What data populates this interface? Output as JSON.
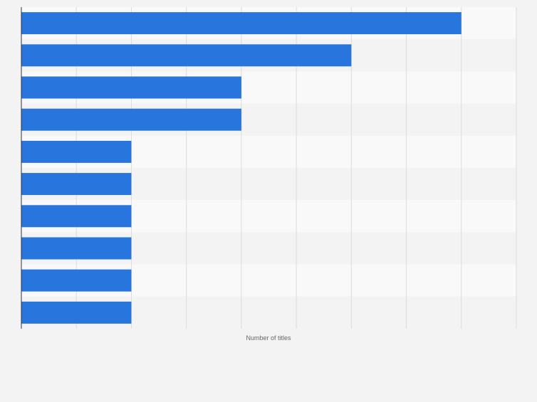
{
  "colors": {
    "bar": "#2876dd",
    "band_light": "#f9f9f9",
    "band_dark": "#f3f3f3",
    "grid": "#dcdcdc",
    "axis": "#333333",
    "label": "#666666",
    "page_bg": "#f3f3f3"
  },
  "chart_data": {
    "type": "bar",
    "orientation": "horizontal",
    "categories": [
      "",
      "",
      "",
      "",
      "",
      "",
      "",
      "",
      "",
      ""
    ],
    "values": [
      8,
      6,
      4,
      4,
      2,
      2,
      2,
      2,
      2,
      2
    ],
    "xlabel": "Number of titles",
    "ylabel": "",
    "xlim": [
      0,
      9
    ],
    "grid": true,
    "tick_labels_visible": false
  }
}
